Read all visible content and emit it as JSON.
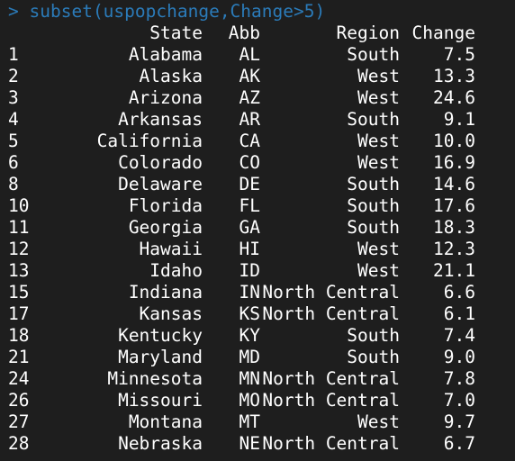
{
  "console": {
    "prompt_symbol": ">",
    "command": "subset(uspopchange,Change>5)",
    "columns": [
      "State",
      "Abb",
      "Region",
      "Change"
    ],
    "rows": [
      {
        "id": "1",
        "state": "Alabama",
        "abb": "AL",
        "region": "South",
        "change": "7.5"
      },
      {
        "id": "2",
        "state": "Alaska",
        "abb": "AK",
        "region": "West",
        "change": "13.3"
      },
      {
        "id": "3",
        "state": "Arizona",
        "abb": "AZ",
        "region": "West",
        "change": "24.6"
      },
      {
        "id": "4",
        "state": "Arkansas",
        "abb": "AR",
        "region": "South",
        "change": "9.1"
      },
      {
        "id": "5",
        "state": "California",
        "abb": "CA",
        "region": "West",
        "change": "10.0"
      },
      {
        "id": "6",
        "state": "Colorado",
        "abb": "CO",
        "region": "West",
        "change": "16.9"
      },
      {
        "id": "8",
        "state": "Delaware",
        "abb": "DE",
        "region": "South",
        "change": "14.6"
      },
      {
        "id": "10",
        "state": "Florida",
        "abb": "FL",
        "region": "South",
        "change": "17.6"
      },
      {
        "id": "11",
        "state": "Georgia",
        "abb": "GA",
        "region": "South",
        "change": "18.3"
      },
      {
        "id": "12",
        "state": "Hawaii",
        "abb": "HI",
        "region": "West",
        "change": "12.3"
      },
      {
        "id": "13",
        "state": "Idaho",
        "abb": "ID",
        "region": "West",
        "change": "21.1"
      },
      {
        "id": "15",
        "state": "Indiana",
        "abb": "IN",
        "region": "North Central",
        "change": "6.6"
      },
      {
        "id": "17",
        "state": "Kansas",
        "abb": "KS",
        "region": "North Central",
        "change": "6.1"
      },
      {
        "id": "18",
        "state": "Kentucky",
        "abb": "KY",
        "region": "South",
        "change": "7.4"
      },
      {
        "id": "21",
        "state": "Maryland",
        "abb": "MD",
        "region": "South",
        "change": "9.0"
      },
      {
        "id": "24",
        "state": "Minnesota",
        "abb": "MN",
        "region": "North Central",
        "change": "7.8"
      },
      {
        "id": "26",
        "state": "Missouri",
        "abb": "MO",
        "region": "North Central",
        "change": "7.0"
      },
      {
        "id": "27",
        "state": "Montana",
        "abb": "MT",
        "region": "West",
        "change": "9.7"
      },
      {
        "id": "28",
        "state": "Nebraska",
        "abb": "NE",
        "region": "North Central",
        "change": "6.7"
      }
    ]
  },
  "colors": {
    "background": "#1e1e1e",
    "text": "#ffffff",
    "prompt": "#2b7bb9"
  }
}
